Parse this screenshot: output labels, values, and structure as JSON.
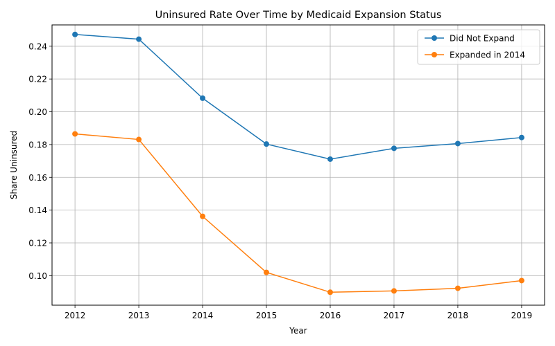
{
  "chart_data": {
    "type": "line",
    "title": "Uninsured Rate Over Time by Medicaid Expansion Status",
    "xlabel": "Year",
    "ylabel": "Share Uninsured",
    "x": [
      2012,
      2013,
      2014,
      2015,
      2016,
      2017,
      2018,
      2019
    ],
    "x_ticks": [
      "2012",
      "2013",
      "2014",
      "2015",
      "2016",
      "2017",
      "2018",
      "2019"
    ],
    "y_ticks": [
      "0.10",
      "0.12",
      "0.14",
      "0.16",
      "0.18",
      "0.20",
      "0.22",
      "0.24"
    ],
    "y_tick_values": [
      0.1,
      0.12,
      0.14,
      0.16,
      0.18,
      0.2,
      0.22,
      0.24
    ],
    "xlim": [
      2011.64,
      2019.36
    ],
    "ylim": [
      0.082,
      0.253
    ],
    "grid": true,
    "legend_position": "top-right",
    "series": [
      {
        "name": "Did Not Expand",
        "color": "#1f77b4",
        "marker": "circle",
        "values": [
          0.2472,
          0.2443,
          0.2083,
          0.1803,
          0.1711,
          0.1777,
          0.1806,
          0.1843
        ]
      },
      {
        "name": "Expanded in 2014",
        "color": "#ff7f0e",
        "marker": "circle",
        "values": [
          0.1865,
          0.1831,
          0.1362,
          0.102,
          0.0899,
          0.0907,
          0.0923,
          0.097
        ]
      }
    ]
  }
}
